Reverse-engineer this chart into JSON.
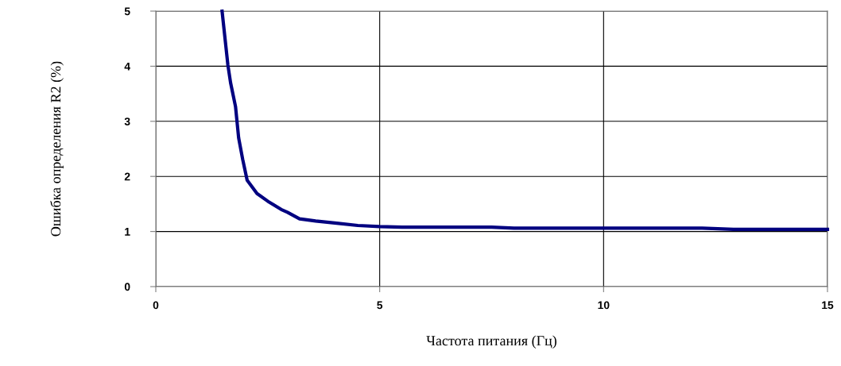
{
  "chart_data": {
    "type": "line",
    "xlabel": "Частота питания (Гц)",
    "ylabel": "Ошибка определения R2 (%)",
    "x": [
      1.48,
      1.61,
      1.67,
      1.78,
      1.85,
      1.94,
      2.04,
      2.26,
      2.5,
      2.8,
      2.94,
      3.21,
      3.57,
      4.04,
      4.51,
      5.0,
      5.5,
      7.5,
      8.0,
      12.2,
      12.9,
      15.0
    ],
    "series": [
      {
        "color": "#000080",
        "values": [
          5.0,
          4.02,
          3.7,
          3.27,
          2.7,
          2.31,
          1.93,
          1.69,
          1.55,
          1.4,
          1.35,
          1.23,
          1.19,
          1.15,
          1.11,
          1.09,
          1.08,
          1.08,
          1.06,
          1.06,
          1.04,
          1.04
        ]
      }
    ],
    "xlim": [
      0,
      15
    ],
    "xticks": [
      0,
      5,
      10,
      15
    ],
    "ylim": [
      0,
      5
    ],
    "yticks": [
      0,
      1,
      2,
      3,
      4,
      5
    ],
    "grid": true,
    "marker": "none",
    "line_style": "solid",
    "legend": false
  }
}
